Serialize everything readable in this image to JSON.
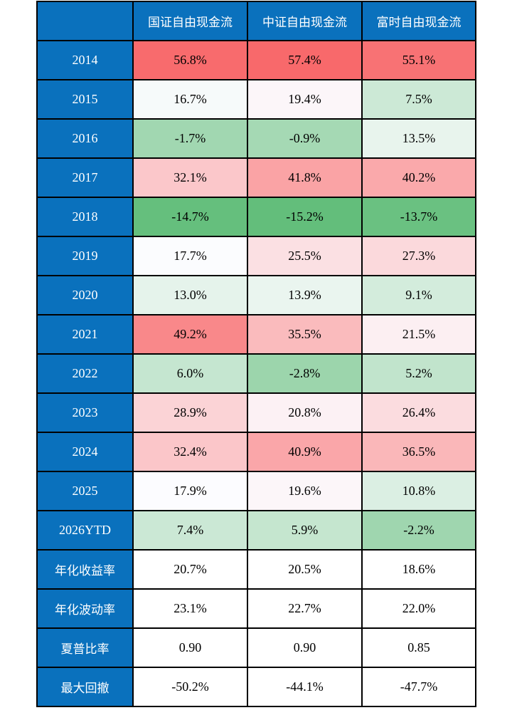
{
  "chart_data": {
    "type": "table",
    "corner_label": "",
    "columns": [
      "国证自由现金流",
      "中证自由现金流",
      "富时自由现金流"
    ],
    "rows": [
      {
        "label": "2014",
        "values": [
          "56.8%",
          "57.4%",
          "55.1%"
        ],
        "heatmap": true
      },
      {
        "label": "2015",
        "values": [
          "16.7%",
          "19.4%",
          "7.5%"
        ],
        "heatmap": true
      },
      {
        "label": "2016",
        "values": [
          "-1.7%",
          "-0.9%",
          "13.5%"
        ],
        "heatmap": true
      },
      {
        "label": "2017",
        "values": [
          "32.1%",
          "41.8%",
          "40.2%"
        ],
        "heatmap": true
      },
      {
        "label": "2018",
        "values": [
          "-14.7%",
          "-15.2%",
          "-13.7%"
        ],
        "heatmap": true
      },
      {
        "label": "2019",
        "values": [
          "17.7%",
          "25.5%",
          "27.3%"
        ],
        "heatmap": true
      },
      {
        "label": "2020",
        "values": [
          "13.0%",
          "13.9%",
          "9.1%"
        ],
        "heatmap": true
      },
      {
        "label": "2021",
        "values": [
          "49.2%",
          "35.5%",
          "21.5%"
        ],
        "heatmap": true
      },
      {
        "label": "2022",
        "values": [
          "6.0%",
          "-2.8%",
          "5.2%"
        ],
        "heatmap": true
      },
      {
        "label": "2023",
        "values": [
          "28.9%",
          "20.8%",
          "26.4%"
        ],
        "heatmap": true
      },
      {
        "label": "2024",
        "values": [
          "32.4%",
          "40.9%",
          "36.5%"
        ],
        "heatmap": true
      },
      {
        "label": "2025",
        "values": [
          "17.9%",
          "19.6%",
          "10.8%"
        ],
        "heatmap": true
      },
      {
        "label": "2026YTD",
        "values": [
          "7.4%",
          "5.9%",
          "-2.2%"
        ],
        "heatmap": true
      },
      {
        "label": "年化收益率",
        "values": [
          "20.7%",
          "20.5%",
          "18.6%"
        ],
        "heatmap": false
      },
      {
        "label": "年化波动率",
        "values": [
          "23.1%",
          "22.7%",
          "22.0%"
        ],
        "heatmap": false
      },
      {
        "label": "夏普比率",
        "values": [
          "0.90",
          "0.90",
          "0.85"
        ],
        "heatmap": false
      },
      {
        "label": "最大回撤",
        "values": [
          "-50.2%",
          "-44.1%",
          "-47.7%"
        ],
        "heatmap": false
      }
    ],
    "heatmap_scale": {
      "min": -15.2,
      "mid": 17.9,
      "max": 57.4,
      "min_color": "#63BE7B",
      "mid_color": "#FCFCFF",
      "max_color": "#F8696B"
    }
  },
  "colors": {
    "header_bg": "#0A71BD",
    "header_text": "#FFFFFF",
    "border": "#000000",
    "value_text": "#000000",
    "page_bg": "#FFFFFF"
  }
}
